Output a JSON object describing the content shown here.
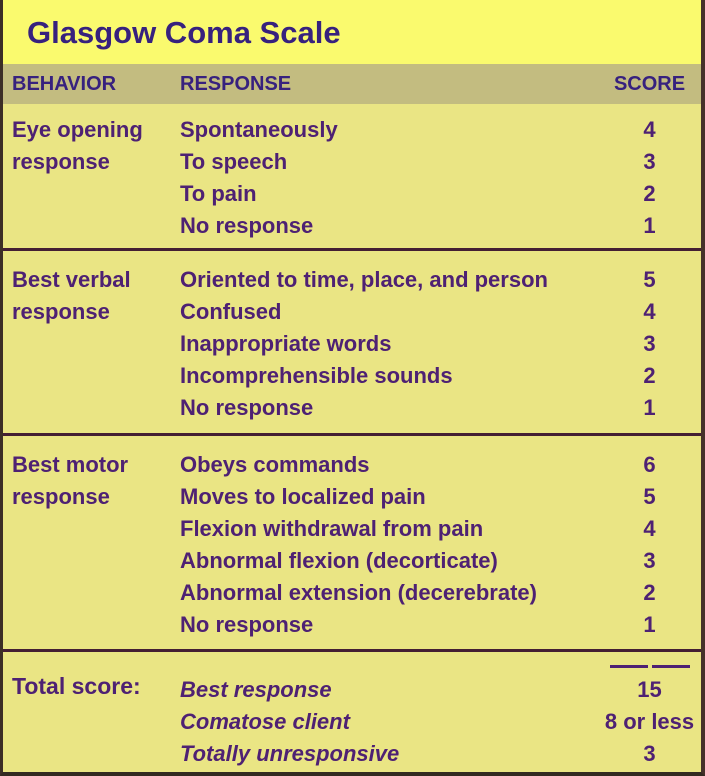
{
  "title": "Glasgow Coma Scale",
  "table": {
    "headers": [
      "BEHAVIOR",
      "RESPONSE",
      "SCORE"
    ],
    "sections": [
      {
        "behavior": "Eye opening response",
        "rows": [
          {
            "response": "Spontaneously",
            "score": "4"
          },
          {
            "response": "To speech",
            "score": "3"
          },
          {
            "response": "To pain",
            "score": "2"
          },
          {
            "response": "No response",
            "score": "1"
          }
        ]
      },
      {
        "behavior": "Best verbal response",
        "rows": [
          {
            "response": "Oriented to time, place, and person",
            "score": "5"
          },
          {
            "response": "Confused",
            "score": "4"
          },
          {
            "response": "Inappropriate words",
            "score": "3"
          },
          {
            "response": "Incomprehensible sounds",
            "score": "2"
          },
          {
            "response": "No response",
            "score": "1"
          }
        ]
      },
      {
        "behavior": "Best motor response",
        "rows": [
          {
            "response": "Obeys commands",
            "score": "6"
          },
          {
            "response": "Moves to localized pain",
            "score": "5"
          },
          {
            "response": "Flexion withdrawal from pain",
            "score": "4"
          },
          {
            "response": "Abnormal flexion (decorticate)",
            "score": "3"
          },
          {
            "response": "Abnormal extension (decerebrate)",
            "score": "2"
          },
          {
            "response": "No response",
            "score": "1"
          }
        ]
      }
    ],
    "total": {
      "label": "Total score:",
      "rows": [
        {
          "response": "Best response",
          "score": "15"
        },
        {
          "response": "Comatose client",
          "score": "8 or less"
        },
        {
          "response": "Totally unresponsive",
          "score": "3"
        }
      ]
    }
  },
  "colors": {
    "title_band_bg": "#FAFA6E",
    "header_bar_bg": "#C3BC80",
    "body_bg": "#EAE584",
    "heading_text": "#37217E",
    "body_text": "#4E2173",
    "divider": "#441F33",
    "frame_edge": "#3C2E26"
  }
}
